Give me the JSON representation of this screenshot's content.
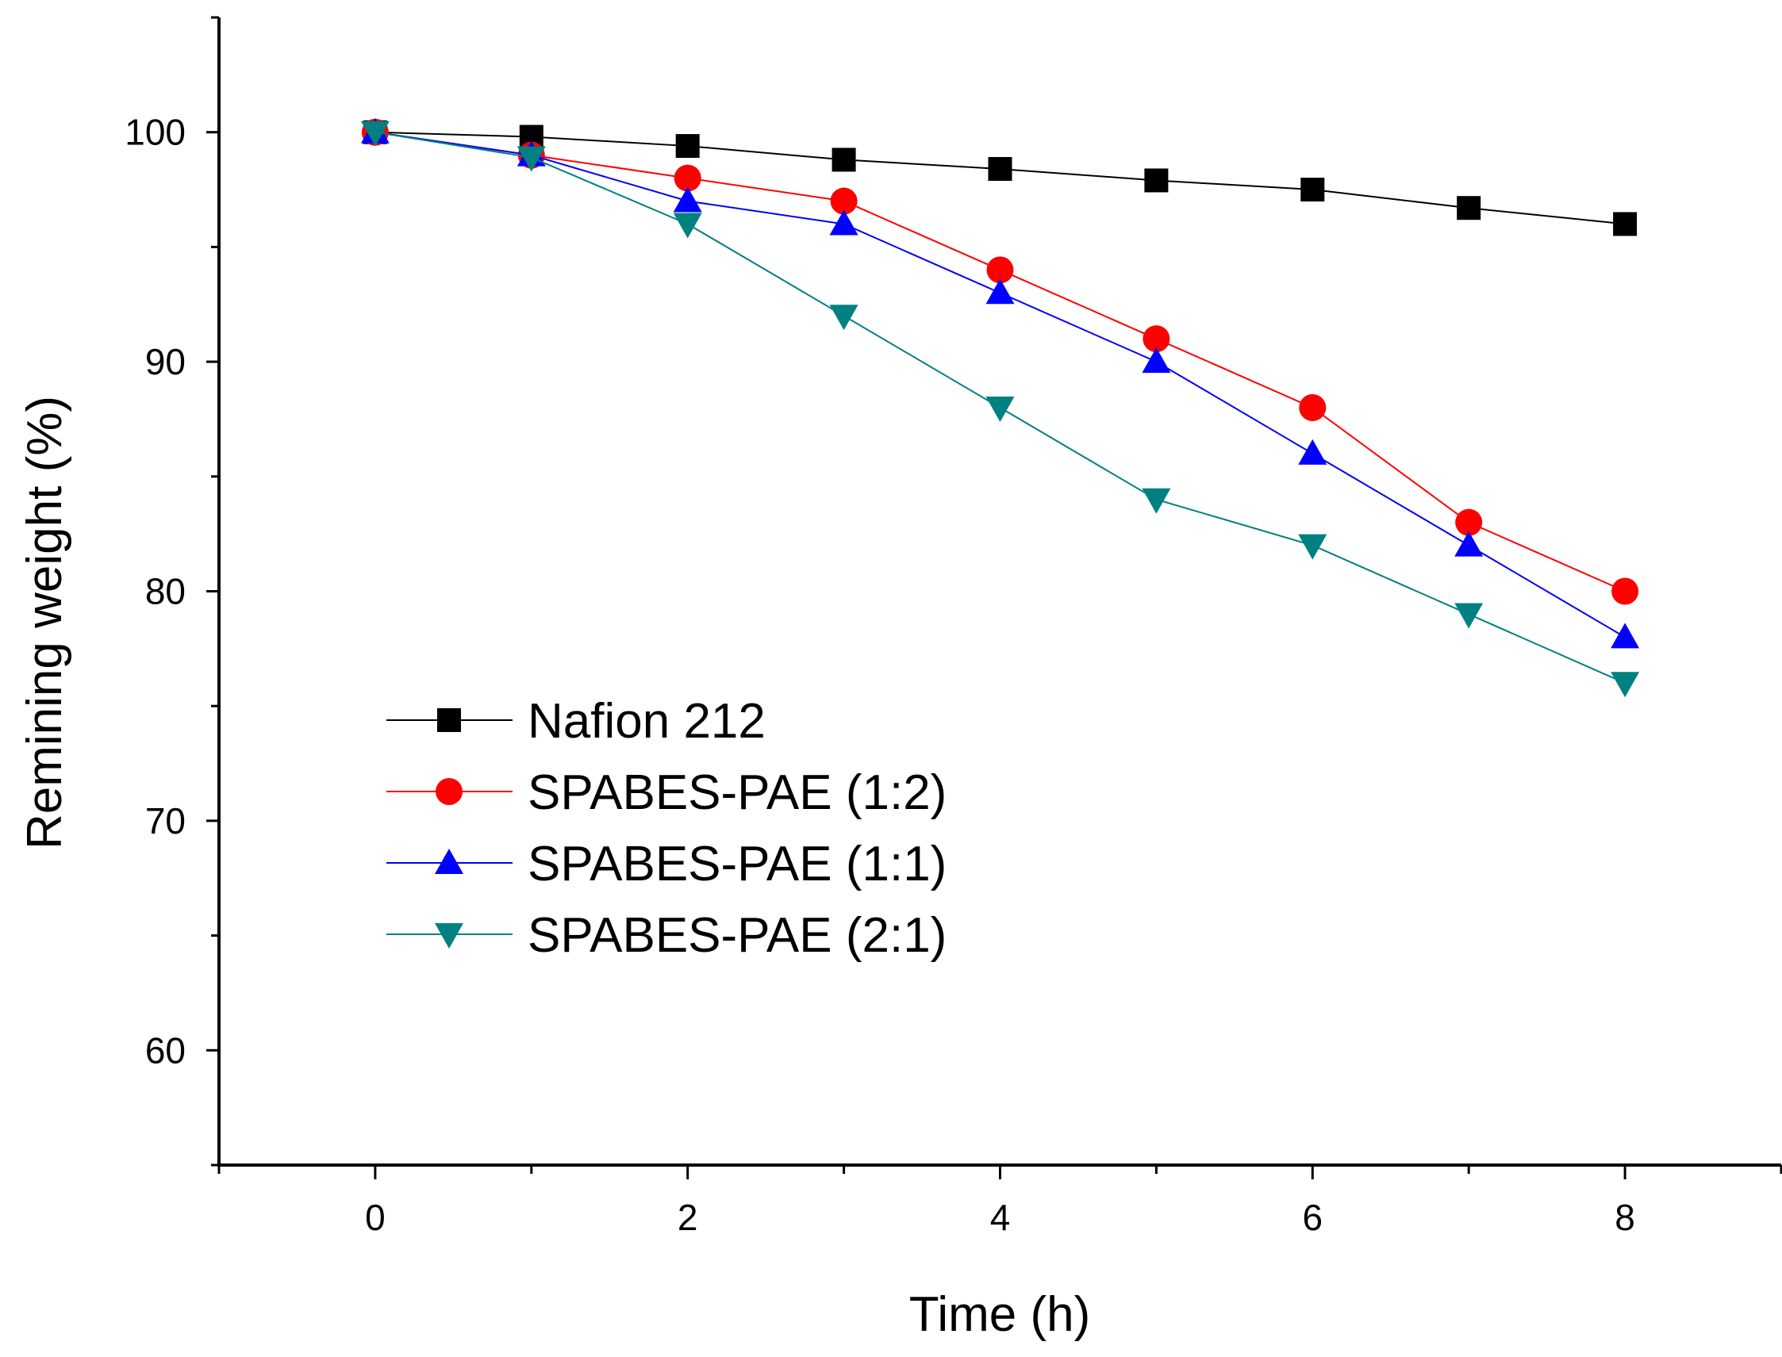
{
  "chart_data": {
    "type": "line",
    "title": "",
    "xlabel": "Time (h)",
    "ylabel": "Remining weight (%)",
    "xlim": [
      -1,
      9
    ],
    "ylim": [
      55,
      105
    ],
    "x_ticks": [
      0,
      2,
      4,
      6,
      8
    ],
    "x_tick_labels": [
      "0",
      "2",
      "4",
      "6",
      "8"
    ],
    "y_ticks": [
      60,
      70,
      80,
      90,
      100
    ],
    "y_tick_labels": [
      "60",
      "70",
      "80",
      "90",
      "100"
    ],
    "grid": false,
    "legend_position": "center-left",
    "x": [
      0,
      1,
      2,
      3,
      4,
      5,
      6,
      7,
      8
    ],
    "series": [
      {
        "name": "Nafion 212",
        "color": "#000000",
        "marker": "square",
        "values": [
          100,
          99.8,
          99.4,
          98.8,
          98.4,
          97.9,
          97.5,
          96.7,
          96
        ]
      },
      {
        "name": "SPABES-PAE (1:2)",
        "color": "#ff0000",
        "marker": "circle",
        "values": [
          100,
          99,
          98,
          97,
          94,
          91,
          88,
          83,
          80
        ]
      },
      {
        "name": "SPABES-PAE (1:1)",
        "color": "#0000ff",
        "marker": "triangle-up",
        "values": [
          100,
          99,
          97,
          96,
          93,
          90,
          86,
          82,
          78
        ]
      },
      {
        "name": "SPABES-PAE (2:1)",
        "color": "#008080",
        "marker": "triangle-down",
        "values": [
          100,
          98.9,
          96,
          92,
          88,
          84,
          82,
          79,
          76
        ]
      }
    ]
  }
}
